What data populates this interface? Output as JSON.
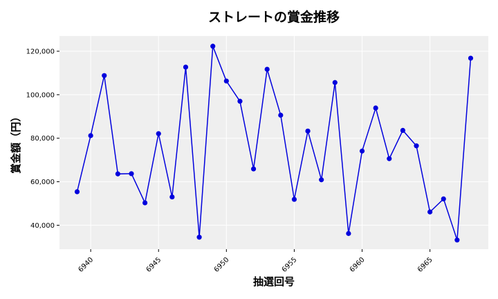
{
  "chart_data": {
    "type": "line",
    "title": "ストレートの賞金推移",
    "xlabel": "抽選回号",
    "ylabel": "賞金額（円）",
    "xlim": [
      6937.7,
      6969.3
    ],
    "ylim": [
      29000,
      127000
    ],
    "x_ticks": [
      6940,
      6945,
      6950,
      6955,
      6960,
      6965
    ],
    "y_ticks": [
      40000,
      60000,
      80000,
      100000,
      120000
    ],
    "y_tick_labels": [
      "40,000",
      "60,000",
      "80,000",
      "100,000",
      "120,000"
    ],
    "grid": true,
    "color": "#0000dd",
    "x": [
      6939,
      6940,
      6941,
      6942,
      6943,
      6944,
      6945,
      6946,
      6947,
      6948,
      6949,
      6950,
      6951,
      6952,
      6953,
      6954,
      6955,
      6956,
      6957,
      6958,
      6959,
      6960,
      6961,
      6962,
      6963,
      6964,
      6965,
      6966,
      6967,
      6968
    ],
    "values": [
      55400,
      81200,
      108800,
      63600,
      63700,
      50300,
      82100,
      53000,
      112700,
      34500,
      122300,
      106300,
      97000,
      65900,
      111700,
      90600,
      51900,
      83300,
      60900,
      105600,
      36200,
      74100,
      93900,
      70600,
      83600,
      76500,
      46100,
      52100,
      33200,
      116800
    ]
  }
}
